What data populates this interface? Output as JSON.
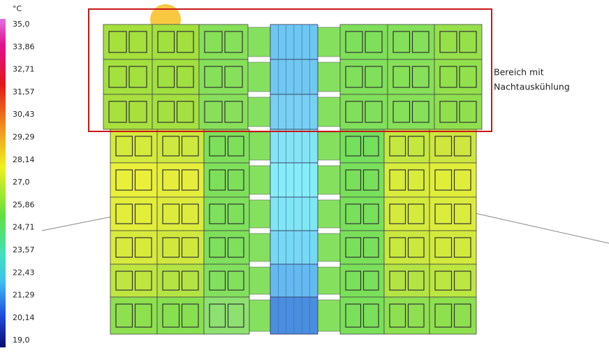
{
  "legend": {
    "unit": "°C",
    "labels": [
      "35,0",
      "33,86",
      "32,71",
      "31,57",
      "30,43",
      "29,29",
      "28,14",
      "27,0",
      "25,86",
      "24,71",
      "23,57",
      "22,43",
      "21,29",
      "20,14",
      "19,0"
    ]
  },
  "annotation": {
    "lines": [
      "Bereich mit",
      "Nachtauskühlung"
    ]
  }
}
